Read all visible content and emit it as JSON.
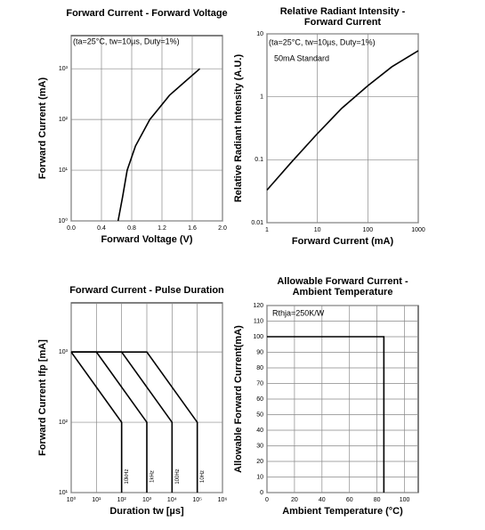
{
  "chart_data": [
    {
      "type": "line",
      "title": [
        "Forward Current - Forward Voltage"
      ],
      "xlabel": "Forward Voltage (V)",
      "ylabel": "Forward Current (mA)",
      "annotations": [
        "(ta=25°C, tw=10µs, Duty=1%)"
      ],
      "log_x": false,
      "log_y": true,
      "grid": true,
      "xlim": [
        0,
        2
      ],
      "xticks": [
        {
          "value": 0,
          "label": "0.0"
        },
        0.4,
        0.8,
        1.2,
        1.6,
        {
          "value": 2,
          "label": "2.0"
        }
      ],
      "ylim": [
        1,
        4500
      ],
      "yticks": [
        {
          "value": 1,
          "label": "10⁰"
        },
        {
          "value": 10,
          "label": "10¹"
        },
        {
          "value": 100,
          "label": "10²"
        },
        {
          "value": 1000,
          "label": "10³"
        }
      ],
      "series": [
        {
          "color": "#000000",
          "x": [
            0.62,
            0.68,
            0.74,
            0.85,
            1.04,
            1.3,
            1.5,
            1.7
          ],
          "values": [
            1,
            3,
            10,
            30,
            100,
            300,
            550,
            1000
          ]
        }
      ]
    },
    {
      "type": "line",
      "title": [
        "Relative Radiant Intensity -",
        "Forward Current"
      ],
      "xlabel": "Forward Current (mA)",
      "ylabel": "Relative Radiant Intensity (A.U.)",
      "annotations": [
        "(ta=25°C, tw=10µs, Duty=1%)",
        "50mA Standard"
      ],
      "log_x": true,
      "log_y": true,
      "grid": true,
      "xlim": [
        1,
        1000
      ],
      "xticks": [
        1,
        10,
        100,
        1000
      ],
      "ylim": [
        0.01,
        10
      ],
      "yticks": [
        0.01,
        0.1,
        1,
        10
      ],
      "series": [
        {
          "color": "#000000",
          "x": [
            1,
            3,
            10,
            30,
            100,
            300,
            1000
          ],
          "values": [
            0.033,
            0.09,
            0.26,
            0.65,
            1.5,
            3.0,
            5.4
          ]
        }
      ]
    },
    {
      "type": "line",
      "title": [
        "Forward Current - Pulse Duration"
      ],
      "xlabel": "Duration tw [µs]",
      "ylabel": "Forward Current Ifp [mA]",
      "annotations": [],
      "log_x": true,
      "log_y": true,
      "grid": true,
      "xlim": [
        1,
        1000000
      ],
      "xticks": [
        {
          "value": 1,
          "label": "10⁰"
        },
        {
          "value": 10,
          "label": "10¹"
        },
        {
          "value": 100,
          "label": "10²"
        },
        {
          "value": 1000,
          "label": "10³"
        },
        {
          "value": 10000,
          "label": "10⁴"
        },
        {
          "value": 100000,
          "label": "10⁵"
        },
        {
          "value": 1000000,
          "label": "10⁶"
        }
      ],
      "ylim": [
        10,
        5000
      ],
      "yticks": [
        {
          "value": 10,
          "label": "10¹"
        },
        {
          "value": 100,
          "label": "10²"
        },
        {
          "value": 1000,
          "label": "10³"
        }
      ],
      "series": [
        {
          "name": "10kHz",
          "color": "#000000",
          "x": [
            1,
            100,
            100
          ],
          "values": [
            1000,
            100,
            10
          ]
        },
        {
          "name": "1kHz",
          "color": "#000000",
          "x": [
            1,
            10,
            1000,
            1000
          ],
          "values": [
            1000,
            1000,
            100,
            10
          ]
        },
        {
          "name": "100Hz",
          "color": "#000000",
          "x": [
            1,
            100,
            10000,
            10000
          ],
          "values": [
            1000,
            1000,
            100,
            10
          ]
        },
        {
          "name": "10Hz",
          "color": "#000000",
          "x": [
            1,
            1000,
            100000,
            100000
          ],
          "values": [
            1000,
            1000,
            100,
            10
          ]
        }
      ]
    },
    {
      "type": "line",
      "title": [
        "Allowable Forward Current -",
        "Ambient Temperature"
      ],
      "xlabel": "Ambient Temperature (°C)",
      "ylabel": "Allowable Forward Current(mA)",
      "annotations": [
        "Rthja=250K/W"
      ],
      "log_x": false,
      "log_y": false,
      "grid": true,
      "xlim": [
        0,
        110
      ],
      "xticks": [
        0,
        20,
        40,
        60,
        80,
        100
      ],
      "ylim": [
        0,
        120
      ],
      "yticks": [
        0,
        10,
        20,
        30,
        40,
        50,
        60,
        70,
        80,
        90,
        100,
        110,
        120
      ],
      "series": [
        {
          "color": "#000000",
          "x": [
            0,
            85,
            85
          ],
          "values": [
            100,
            100,
            0
          ]
        }
      ]
    }
  ]
}
